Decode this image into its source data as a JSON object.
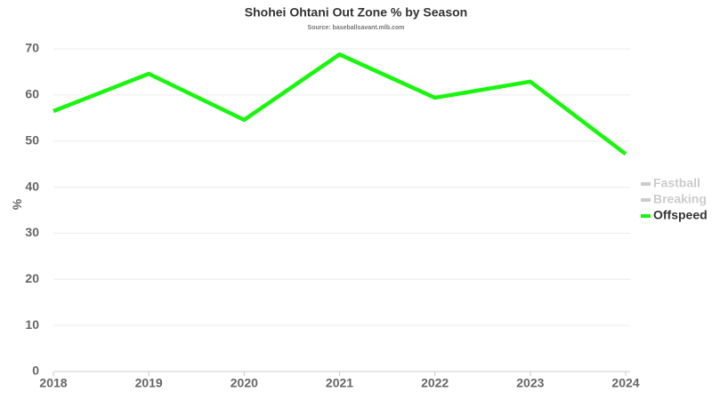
{
  "chart_data": {
    "type": "line",
    "title": "Shohei Ohtani Out Zone % by Season",
    "subtitle": "Source: baseballsavant.mlb.com",
    "y_label": "%",
    "x": [
      2018,
      2019,
      2020,
      2021,
      2022,
      2023,
      2024
    ],
    "series": [
      {
        "name": "Fastball",
        "visible": false,
        "values": [
          null,
          null,
          null,
          null,
          null,
          null,
          null
        ]
      },
      {
        "name": "Breaking",
        "visible": false,
        "values": [
          null,
          null,
          null,
          null,
          null,
          null,
          null
        ]
      },
      {
        "name": "Offspeed",
        "visible": true,
        "color": "#19f50f",
        "values": [
          56.5,
          64.6,
          54.6,
          68.8,
          59.4,
          62.9,
          47.2
        ]
      }
    ],
    "xlim": [
      2018,
      2024
    ],
    "xticks": [
      2018,
      2019,
      2020,
      2021,
      2022,
      2023,
      2024
    ],
    "ylim": [
      0,
      70
    ],
    "yticks": [
      0,
      10,
      20,
      30,
      40,
      50,
      60,
      70
    ],
    "grid": true,
    "legend": "right"
  }
}
